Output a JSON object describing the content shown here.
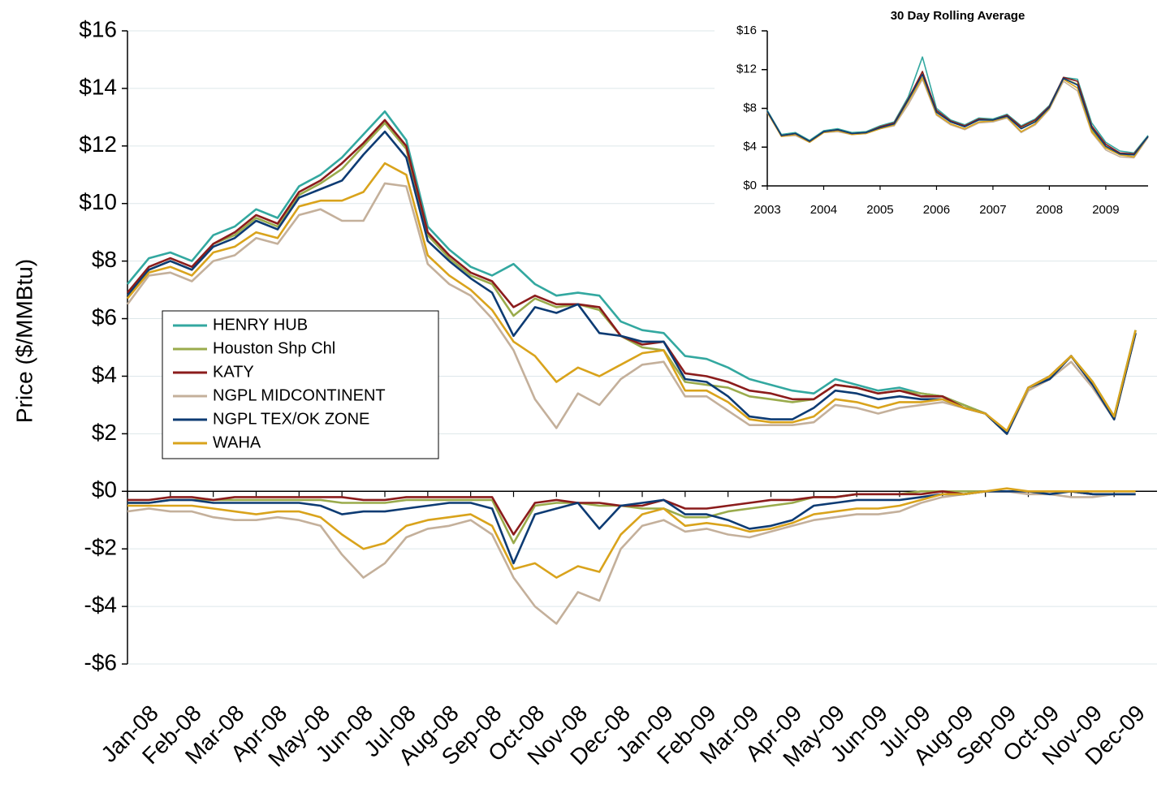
{
  "chart_data": [
    {
      "type": "line",
      "y_label": "Price ($/MMBtu)",
      "categories": [
        "Jan-08",
        null,
        "Feb-08",
        null,
        "Mar-08",
        null,
        "Apr-08",
        null,
        "May-08",
        null,
        "Jun-08",
        null,
        "Jul-08",
        null,
        "Aug-08",
        null,
        "Sep-08",
        null,
        "Oct-08",
        null,
        "Nov-08",
        null,
        "Dec-08",
        null,
        "Jan-09",
        null,
        "Feb-09",
        null,
        "Mar-09",
        null,
        "Apr-09",
        null,
        "May-09",
        null,
        "Jun-09",
        null,
        "Jul-09",
        null,
        "Aug-09",
        null,
        "Sep-09",
        null,
        "Oct-09",
        null,
        "Nov-09",
        null,
        "Dec-09",
        null
      ],
      "ylim": [
        -6,
        16
      ],
      "yticks": [
        {
          "value": -6,
          "label": "-$6"
        },
        {
          "value": -4,
          "label": "-$4"
        },
        {
          "value": -2,
          "label": "-$2"
        },
        {
          "value": 0,
          "label": "$0"
        },
        {
          "value": 2,
          "label": "$2"
        },
        {
          "value": 4,
          "label": "$4"
        },
        {
          "value": 6,
          "label": "$6"
        },
        {
          "value": 8,
          "label": "$8"
        },
        {
          "value": 10,
          "label": "$10"
        },
        {
          "value": 12,
          "label": "$12"
        },
        {
          "value": 14,
          "label": "$14"
        },
        {
          "value": 16,
          "label": "$16"
        }
      ],
      "grid": true,
      "legend": "left",
      "series": [
        {
          "name": "HENRY HUB",
          "color": "#33a8a0",
          "values": [
            7.2,
            8.1,
            8.3,
            8.0,
            8.9,
            9.2,
            9.8,
            9.5,
            10.6,
            11.0,
            11.6,
            12.4,
            13.2,
            12.2,
            9.2,
            8.4,
            7.8,
            7.5,
            7.9,
            7.2,
            6.8,
            6.9,
            6.8,
            5.9,
            5.6,
            5.5,
            4.7,
            4.6,
            4.3,
            3.9,
            3.7,
            3.5,
            3.4,
            3.9,
            3.7,
            3.5,
            3.6,
            3.4,
            3.3,
            3.0,
            2.7,
            2.0,
            3.6,
            4.0,
            4.7,
            3.8,
            2.6,
            5.6
          ]
        },
        {
          "name": "Houston Shp Chl",
          "color": "#9aab4c",
          "values": [
            6.8,
            7.7,
            8.0,
            7.7,
            8.6,
            8.9,
            9.5,
            9.2,
            10.3,
            10.7,
            11.2,
            12.0,
            12.8,
            11.9,
            8.9,
            8.1,
            7.5,
            7.2,
            6.1,
            6.7,
            6.4,
            6.5,
            6.3,
            5.4,
            5.0,
            4.9,
            3.8,
            3.7,
            3.6,
            3.3,
            3.2,
            3.1,
            3.2,
            3.7,
            3.6,
            3.4,
            3.5,
            3.4,
            3.3,
            3.0,
            2.7,
            2.0,
            3.6,
            4.0,
            4.7,
            3.7,
            2.5,
            5.5
          ],
          "basis": [
            -0.4,
            -0.4,
            -0.3,
            -0.3,
            -0.3,
            -0.3,
            -0.3,
            -0.3,
            -0.3,
            -0.3,
            -0.4,
            -0.4,
            -0.4,
            -0.3,
            -0.3,
            -0.3,
            -0.3,
            -0.3,
            -1.8,
            -0.5,
            -0.4,
            -0.4,
            -0.5,
            -0.5,
            -0.6,
            -0.6,
            -0.9,
            -0.9,
            -0.7,
            -0.6,
            -0.5,
            -0.4,
            -0.2,
            -0.2,
            -0.1,
            -0.1,
            -0.1,
            0.0,
            0.0,
            0.0,
            0.0,
            0.0,
            0.0,
            0.0,
            0.0,
            -0.1,
            -0.1,
            -0.1
          ]
        },
        {
          "name": "KATY",
          "color": "#8b1c1c",
          "values": [
            6.9,
            7.8,
            8.1,
            7.8,
            8.6,
            9.0,
            9.6,
            9.3,
            10.4,
            10.8,
            11.4,
            12.1,
            12.9,
            12.0,
            9.0,
            8.2,
            7.6,
            7.3,
            6.4,
            6.8,
            6.5,
            6.5,
            6.4,
            5.4,
            5.1,
            5.2,
            4.1,
            4.0,
            3.8,
            3.5,
            3.4,
            3.2,
            3.2,
            3.7,
            3.6,
            3.4,
            3.5,
            3.3,
            3.3,
            2.9,
            2.7,
            2.0,
            3.6,
            4.0,
            4.7,
            3.7,
            2.5,
            5.5
          ],
          "basis": [
            -0.3,
            -0.3,
            -0.2,
            -0.2,
            -0.3,
            -0.2,
            -0.2,
            -0.2,
            -0.2,
            -0.2,
            -0.2,
            -0.3,
            -0.3,
            -0.2,
            -0.2,
            -0.2,
            -0.2,
            -0.2,
            -1.5,
            -0.4,
            -0.3,
            -0.4,
            -0.4,
            -0.5,
            -0.5,
            -0.3,
            -0.6,
            -0.6,
            -0.5,
            -0.4,
            -0.3,
            -0.3,
            -0.2,
            -0.2,
            -0.1,
            -0.1,
            -0.1,
            -0.1,
            0.0,
            -0.1,
            0.0,
            0.0,
            0.0,
            0.0,
            0.0,
            -0.1,
            -0.1,
            -0.1
          ]
        },
        {
          "name": "NGPL MIDCONTINENT",
          "color": "#c4b09b",
          "values": [
            6.5,
            7.5,
            7.6,
            7.3,
            8.0,
            8.2,
            8.8,
            8.6,
            9.6,
            9.8,
            9.4,
            9.4,
            10.7,
            10.6,
            7.9,
            7.2,
            6.8,
            6.0,
            4.9,
            3.2,
            2.2,
            3.4,
            3.0,
            3.9,
            4.4,
            4.5,
            3.3,
            3.3,
            2.8,
            2.3,
            2.3,
            2.3,
            2.4,
            3.0,
            2.9,
            2.7,
            2.9,
            3.0,
            3.1,
            2.9,
            2.7,
            2.0,
            3.5,
            3.9,
            4.5,
            3.6,
            2.5,
            5.5
          ],
          "basis": [
            -0.7,
            -0.6,
            -0.7,
            -0.7,
            -0.9,
            -1.0,
            -1.0,
            -0.9,
            -1.0,
            -1.2,
            -2.2,
            -3.0,
            -2.5,
            -1.6,
            -1.3,
            -1.2,
            -1.0,
            -1.5,
            -3.0,
            -4.0,
            -4.6,
            -3.5,
            -3.8,
            -2.0,
            -1.2,
            -1.0,
            -1.4,
            -1.3,
            -1.5,
            -1.6,
            -1.4,
            -1.2,
            -1.0,
            -0.9,
            -0.8,
            -0.8,
            -0.7,
            -0.4,
            -0.2,
            -0.1,
            0.0,
            0.0,
            -0.1,
            -0.1,
            -0.2,
            -0.2,
            -0.1,
            -0.1
          ]
        },
        {
          "name": "NGPL TEX/OK ZONE",
          "color": "#0d3b73",
          "values": [
            6.8,
            7.7,
            8.0,
            7.7,
            8.5,
            8.8,
            9.4,
            9.1,
            10.2,
            10.5,
            10.8,
            11.7,
            12.5,
            11.6,
            8.7,
            8.0,
            7.4,
            6.9,
            5.4,
            6.4,
            6.2,
            6.5,
            5.5,
            5.4,
            5.2,
            5.2,
            3.9,
            3.8,
            3.3,
            2.6,
            2.5,
            2.5,
            2.9,
            3.5,
            3.4,
            3.2,
            3.3,
            3.2,
            3.2,
            2.9,
            2.7,
            2.0,
            3.6,
            3.9,
            4.7,
            3.7,
            2.5,
            5.5
          ],
          "basis": [
            -0.4,
            -0.4,
            -0.3,
            -0.3,
            -0.4,
            -0.4,
            -0.4,
            -0.4,
            -0.4,
            -0.5,
            -0.8,
            -0.7,
            -0.7,
            -0.6,
            -0.5,
            -0.4,
            -0.4,
            -0.6,
            -2.5,
            -0.8,
            -0.6,
            -0.4,
            -1.3,
            -0.5,
            -0.4,
            -0.3,
            -0.8,
            -0.8,
            -1.0,
            -1.3,
            -1.2,
            -1.0,
            -0.5,
            -0.4,
            -0.3,
            -0.3,
            -0.3,
            -0.2,
            -0.1,
            -0.1,
            0.0,
            0.0,
            0.0,
            -0.1,
            0.0,
            -0.1,
            -0.1,
            -0.1
          ]
        },
        {
          "name": "WAHA",
          "color": "#d9a31c",
          "values": [
            6.7,
            7.6,
            7.8,
            7.5,
            8.3,
            8.5,
            9.0,
            8.8,
            9.9,
            10.1,
            10.1,
            10.4,
            11.4,
            11.0,
            8.2,
            7.5,
            7.0,
            6.3,
            5.2,
            4.7,
            3.8,
            4.3,
            4.0,
            4.4,
            4.8,
            4.9,
            3.5,
            3.5,
            3.1,
            2.5,
            2.4,
            2.4,
            2.6,
            3.2,
            3.1,
            2.9,
            3.1,
            3.1,
            3.2,
            2.9,
            2.7,
            2.1,
            3.6,
            4.0,
            4.7,
            3.8,
            2.6,
            5.6
          ],
          "basis": [
            -0.5,
            -0.5,
            -0.5,
            -0.5,
            -0.6,
            -0.7,
            -0.8,
            -0.7,
            -0.7,
            -0.9,
            -1.5,
            -2.0,
            -1.8,
            -1.2,
            -1.0,
            -0.9,
            -0.8,
            -1.2,
            -2.7,
            -2.5,
            -3.0,
            -2.6,
            -2.8,
            -1.5,
            -0.8,
            -0.6,
            -1.2,
            -1.1,
            -1.2,
            -1.4,
            -1.3,
            -1.1,
            -0.8,
            -0.7,
            -0.6,
            -0.6,
            -0.5,
            -0.3,
            -0.1,
            -0.1,
            0.0,
            0.1,
            0.0,
            0.0,
            0.0,
            0.0,
            0.0,
            0.0
          ]
        }
      ]
    },
    {
      "type": "line",
      "title": "30 Day Rolling Average",
      "x": [
        2003.0,
        2003.25,
        2003.5,
        2003.75,
        2004.0,
        2004.25,
        2004.5,
        2004.75,
        2005.0,
        2005.25,
        2005.5,
        2005.75,
        2006.0,
        2006.25,
        2006.5,
        2006.75,
        2007.0,
        2007.25,
        2007.5,
        2007.75,
        2008.0,
        2008.25,
        2008.5,
        2008.75,
        2009.0,
        2009.25,
        2009.5,
        2009.75
      ],
      "xlim": [
        2003,
        2009.75
      ],
      "xticks": [
        2003,
        2004,
        2005,
        2006,
        2007,
        2008,
        2009
      ],
      "ylim": [
        0,
        16
      ],
      "yticks": [
        {
          "value": 0,
          "label": "$0"
        },
        {
          "value": 4,
          "label": "$4"
        },
        {
          "value": 8,
          "label": "$8"
        },
        {
          "value": 12,
          "label": "$12"
        },
        {
          "value": 16,
          "label": "$16"
        }
      ],
      "grid": false,
      "series": [
        {
          "color": "#c4b09b",
          "values": [
            7.6,
            5.1,
            5.2,
            4.5,
            5.5,
            5.6,
            5.3,
            5.4,
            5.9,
            6.2,
            8.4,
            11.0,
            7.3,
            6.3,
            5.8,
            6.5,
            6.6,
            7.0,
            5.5,
            6.3,
            7.9,
            10.8,
            9.8,
            5.5,
            3.7,
            3.0,
            2.9,
            5.0
          ]
        },
        {
          "color": "#9aab4c",
          "values": [
            7.7,
            5.2,
            5.4,
            4.6,
            5.6,
            5.8,
            5.4,
            5.5,
            6.0,
            6.4,
            8.9,
            11.8,
            7.7,
            6.6,
            6.1,
            6.8,
            6.8,
            7.2,
            6.0,
            6.7,
            8.1,
            11.1,
            10.5,
            5.8,
            4.0,
            3.2,
            3.2,
            5.1
          ]
        },
        {
          "color": "#d9a31c",
          "values": [
            7.6,
            5.1,
            5.3,
            4.5,
            5.5,
            5.7,
            5.3,
            5.4,
            5.9,
            6.3,
            8.7,
            11.2,
            7.4,
            6.4,
            5.9,
            6.6,
            6.7,
            7.1,
            5.6,
            6.4,
            8.0,
            11.0,
            10.1,
            5.6,
            3.9,
            3.2,
            3.0,
            5.1
          ]
        },
        {
          "color": "#33a8a0",
          "values": [
            7.8,
            5.3,
            5.5,
            4.7,
            5.7,
            5.9,
            5.5,
            5.6,
            6.2,
            6.6,
            9.2,
            13.3,
            8.0,
            6.8,
            6.3,
            7.0,
            6.9,
            7.4,
            6.2,
            6.9,
            8.3,
            11.2,
            11.0,
            6.5,
            4.5,
            3.6,
            3.4,
            5.2
          ]
        },
        {
          "color": "#8b1c1c",
          "values": [
            7.7,
            5.2,
            5.4,
            4.6,
            5.6,
            5.8,
            5.4,
            5.5,
            6.1,
            6.5,
            9.0,
            11.8,
            7.8,
            6.7,
            6.2,
            6.9,
            6.8,
            7.3,
            6.1,
            6.8,
            8.2,
            11.2,
            10.8,
            6.2,
            4.3,
            3.4,
            3.3,
            5.1
          ]
        },
        {
          "color": "#0d3b73",
          "values": [
            7.7,
            5.2,
            5.4,
            4.6,
            5.6,
            5.8,
            5.4,
            5.5,
            6.0,
            6.4,
            8.9,
            11.5,
            7.6,
            6.6,
            6.1,
            6.8,
            6.8,
            7.2,
            5.9,
            6.6,
            8.1,
            11.1,
            10.4,
            6.0,
            4.1,
            3.3,
            3.2,
            5.1
          ]
        }
      ]
    }
  ]
}
